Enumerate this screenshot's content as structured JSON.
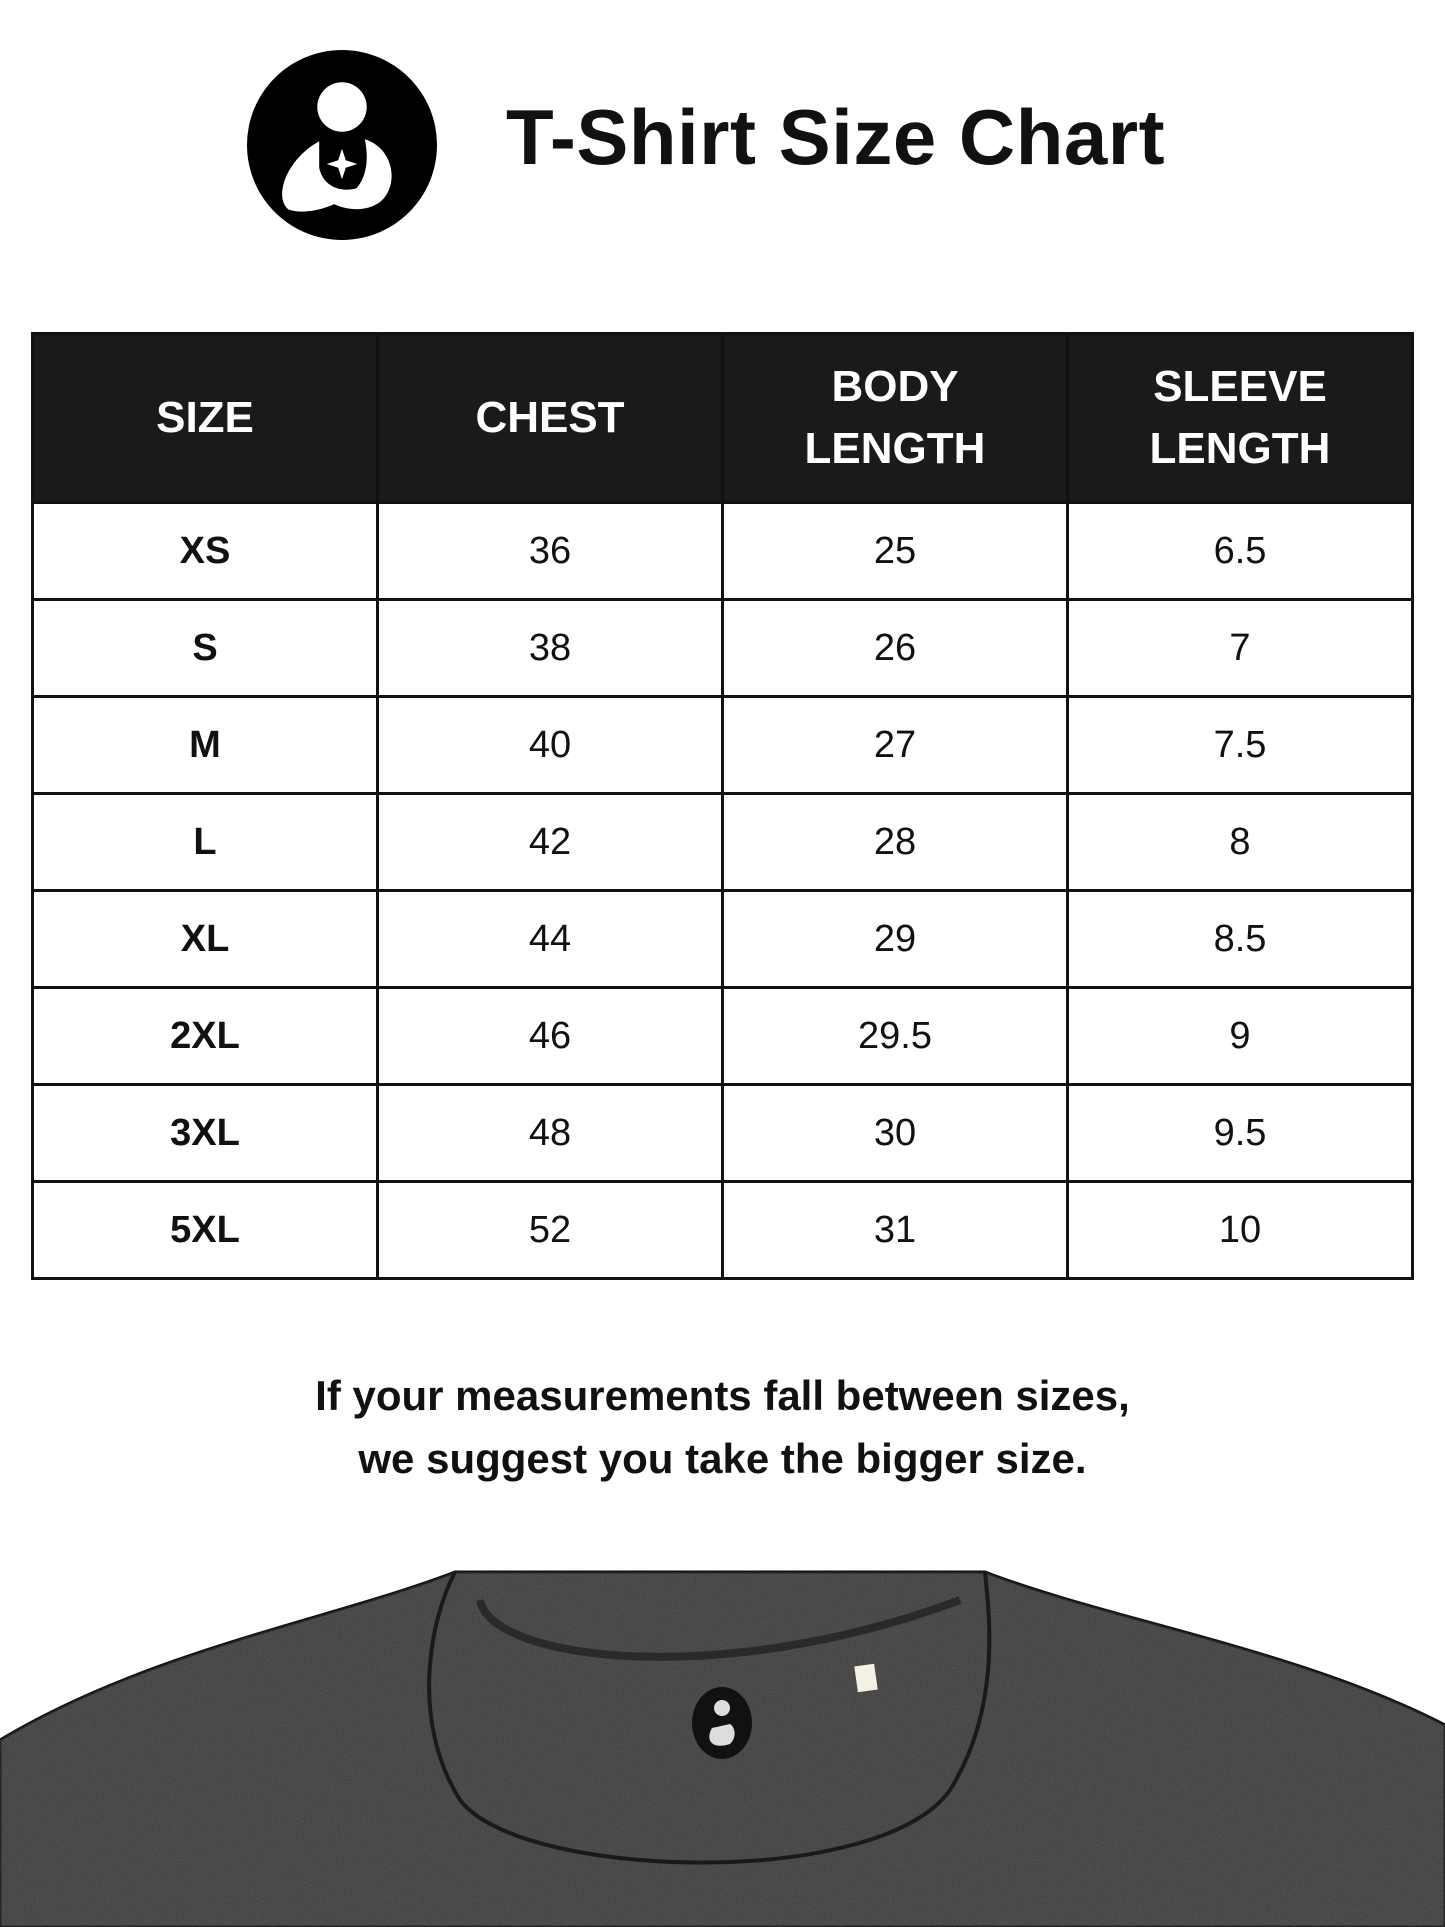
{
  "header": {
    "title": "T-Shirt Size Chart",
    "logo_icon": "parent-holding-baby-logo"
  },
  "table": {
    "columns": [
      {
        "line1": "SIZE",
        "line2": ""
      },
      {
        "line1": "CHEST",
        "line2": ""
      },
      {
        "line1": "BODY",
        "line2": "LENGTH"
      },
      {
        "line1": "SLEEVE",
        "line2": "LENGTH"
      }
    ],
    "rows": [
      [
        "XS",
        "36",
        "25",
        "6.5"
      ],
      [
        "S",
        "38",
        "26",
        "7"
      ],
      [
        "M",
        "40",
        "27",
        "7.5"
      ],
      [
        "L",
        "42",
        "28",
        "8"
      ],
      [
        "XL",
        "44",
        "29",
        "8.5"
      ],
      [
        "2XL",
        "46",
        "29.5",
        "9"
      ],
      [
        "3XL",
        "48",
        "30",
        "9.5"
      ],
      [
        "5XL",
        "52",
        "31",
        "10"
      ]
    ]
  },
  "note": {
    "line1": "If your measurements fall between sizes,",
    "line2": "we suggest you take the bigger size."
  },
  "colors": {
    "header_bg": "#1a1a1a",
    "shirt": "#3a3a3a"
  }
}
